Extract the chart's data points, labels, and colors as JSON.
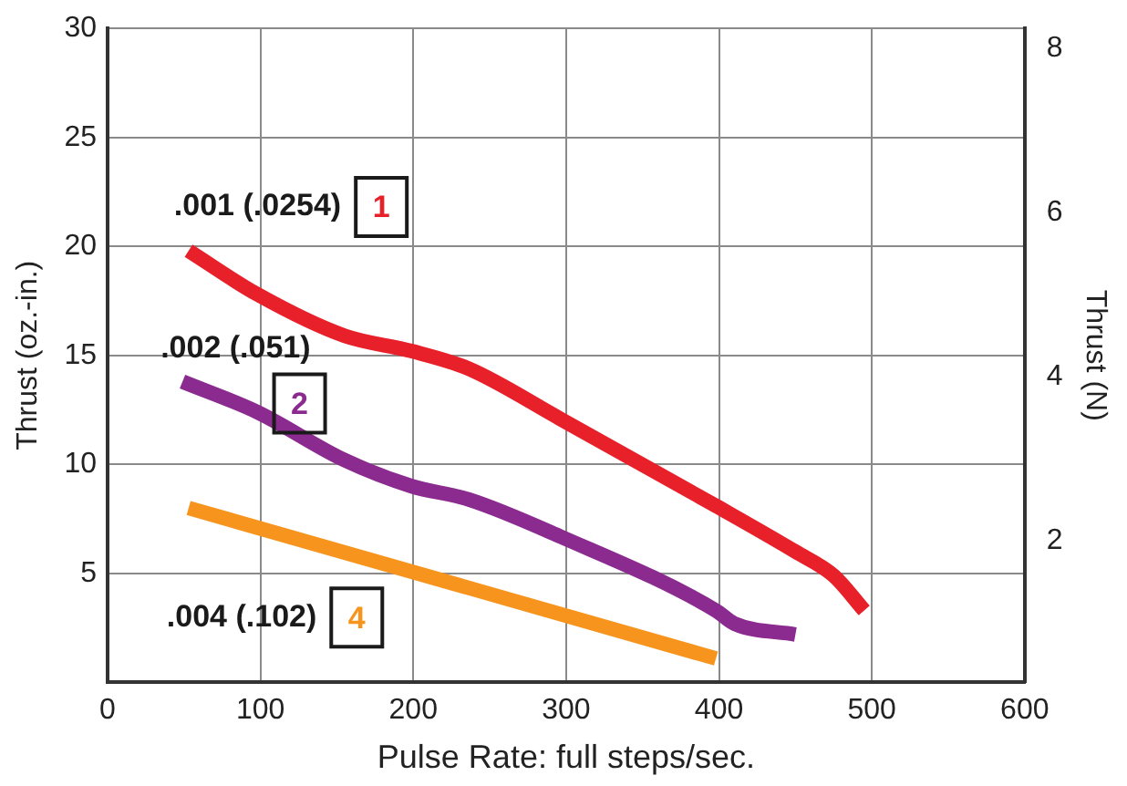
{
  "chart_data": {
    "type": "line",
    "xlabel": "Pulse Rate: full steps/sec.",
    "ylabel": "Thrust (oz.-in.)",
    "y2label": "Thrust (N)",
    "series": [
      {
        "name": ".001 (.0254)",
        "color": "#e8202a",
        "x": [
          53,
          98,
          155,
          199,
          236,
          296,
          398,
          450,
          475,
          495
        ],
        "values": [
          19.8,
          17.8,
          15.9,
          15.2,
          14.4,
          12.1,
          8.1,
          6.0,
          4.9,
          3.3
        ]
      },
      {
        "name": ".002 (.051)",
        "color": "#8b2a8f",
        "x": [
          49,
          98,
          155,
          199,
          236,
          296,
          398,
          410,
          450
        ],
        "values": [
          13.8,
          12.4,
          10.2,
          9.0,
          8.4,
          6.7,
          3.3,
          2.7,
          2.2
        ]
      },
      {
        "name": ".004 (.102)",
        "color": "#f7941d",
        "x": [
          53,
          398
        ],
        "values": [
          8.0,
          1.1
        ]
      }
    ],
    "annotations": [
      "1",
      "2",
      "4"
    ],
    "xlim": [
      0,
      600
    ],
    "xticks": [
      0,
      100,
      200,
      300,
      400,
      500,
      600
    ],
    "ylim": [
      0,
      30
    ],
    "yticks": [
      5,
      10,
      15,
      20,
      25,
      30
    ],
    "y2lim": [
      0.27,
      8.24
    ],
    "y2ticks": [
      2,
      4,
      6,
      8
    ],
    "grid": true,
    "legend": false,
    "line_style": "solid",
    "marker": "none"
  }
}
